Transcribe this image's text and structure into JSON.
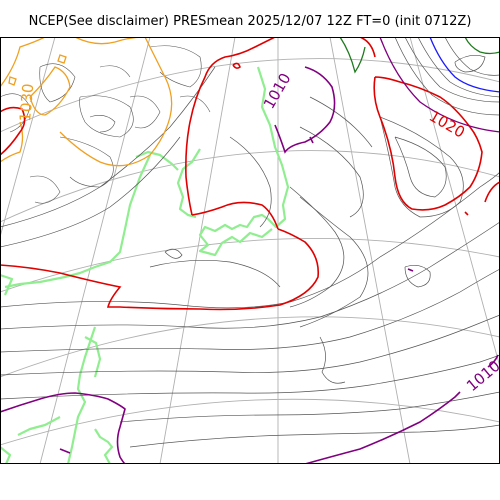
{
  "title": "NCEP(See disclaimer) PRESmean 2025/12/07 12Z FT=0 (init 0712Z)",
  "map": {
    "variable": "PRESmean",
    "colors": {
      "isobar": "#444444",
      "isobar_1010": "#800080",
      "isobar_1020": "#e00000",
      "isobar_1030": "#f0a020",
      "isobar_1000": "#1f7a1f",
      "isobar_990": "#1a1aff",
      "coastline": "#90ee90",
      "graticule": "#b0b0b0",
      "frame": "#000000"
    },
    "contour_labels": [
      {
        "name": "label-1010-north",
        "text": "1010",
        "color": "#800080"
      },
      {
        "name": "label-1020-east",
        "text": "1020",
        "color": "#e00000"
      },
      {
        "name": "label-1030-west",
        "text": "1030",
        "color": "#f0a020"
      },
      {
        "name": "label-1010-southeast",
        "text": "1010",
        "color": "#800080"
      }
    ]
  }
}
